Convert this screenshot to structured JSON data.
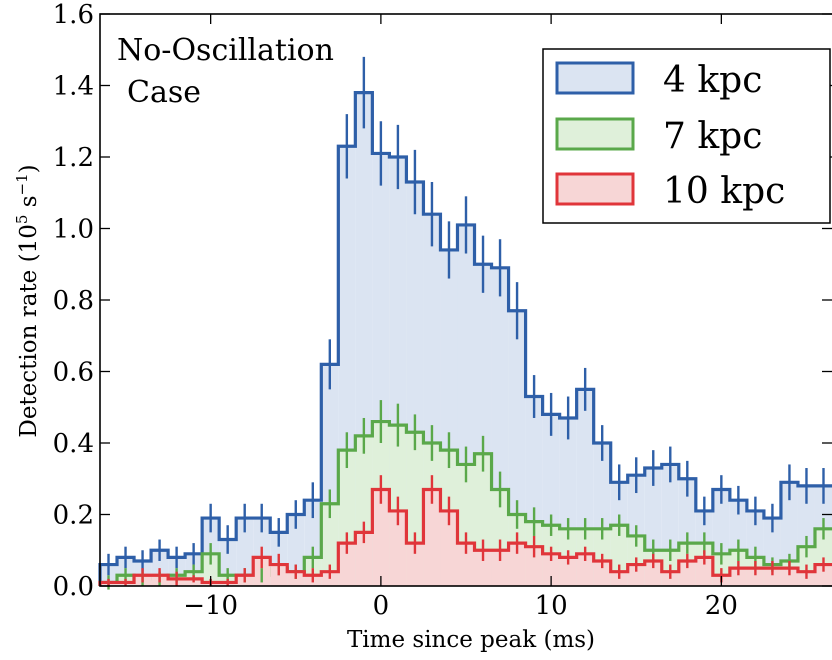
{
  "chart_data": {
    "type": "bar",
    "title": "",
    "xlabel": "Time since peak (ms)",
    "ylabel": "Detection rate (10",
    "ylabel_sup1": "5",
    "ylabel_mid": " s",
    "ylabel_sup2": "−1",
    "ylabel_end": ")",
    "xlim": [
      -16.5,
      26.5
    ],
    "ylim": [
      0.0,
      1.6
    ],
    "bin_width": 1,
    "x_ticks": [
      -10,
      0,
      10,
      20
    ],
    "x_tick_labels": [
      "−10",
      "0",
      "10",
      "20"
    ],
    "y_ticks": [
      0.0,
      0.2,
      0.4,
      0.6,
      0.8,
      1.0,
      1.2,
      1.4,
      1.6
    ],
    "y_tick_labels": [
      "0.0",
      "0.2",
      "0.4",
      "0.6",
      "0.8",
      "1.0",
      "1.2",
      "1.4",
      "1.6"
    ],
    "annotation": [
      "No-Oscillation",
      "Case"
    ],
    "legend_position": "top-right",
    "x": [
      -16,
      -15,
      -14,
      -13,
      -12,
      -11,
      -10,
      -9,
      -8,
      -7,
      -6,
      -5,
      -4,
      -3,
      -2,
      -1,
      0,
      1,
      2,
      3,
      4,
      5,
      6,
      7,
      8,
      9,
      10,
      11,
      12,
      13,
      14,
      15,
      16,
      17,
      18,
      19,
      20,
      21,
      22,
      23,
      24,
      25,
      26
    ],
    "series": [
      {
        "name": "4 kpc",
        "color": "#2e5fa8",
        "fill": "#dbe4f2",
        "values": [
          0.06,
          0.08,
          0.07,
          0.1,
          0.08,
          0.09,
          0.19,
          0.13,
          0.19,
          0.19,
          0.15,
          0.2,
          0.24,
          0.62,
          1.23,
          1.38,
          1.21,
          1.2,
          1.13,
          1.04,
          0.94,
          1.01,
          0.9,
          0.89,
          0.77,
          0.53,
          0.48,
          0.47,
          0.55,
          0.4,
          0.29,
          0.31,
          0.33,
          0.34,
          0.3,
          0.21,
          0.27,
          0.24,
          0.21,
          0.19,
          0.29,
          0.28,
          0.28
        ],
        "errors": [
          0.03,
          0.03,
          0.03,
          0.03,
          0.03,
          0.03,
          0.04,
          0.04,
          0.04,
          0.04,
          0.04,
          0.04,
          0.05,
          0.07,
          0.09,
          0.1,
          0.09,
          0.09,
          0.09,
          0.09,
          0.08,
          0.08,
          0.08,
          0.08,
          0.08,
          0.06,
          0.06,
          0.06,
          0.06,
          0.05,
          0.05,
          0.05,
          0.05,
          0.05,
          0.05,
          0.04,
          0.04,
          0.04,
          0.04,
          0.04,
          0.05,
          0.05,
          0.05
        ]
      },
      {
        "name": "7 kpc",
        "color": "#5aa84a",
        "fill": "#dff0da",
        "values": [
          0.01,
          0.03,
          0.02,
          0.02,
          0.03,
          0.04,
          0.09,
          0.03,
          0.03,
          0.03,
          0.05,
          0.04,
          0.08,
          0.23,
          0.38,
          0.42,
          0.46,
          0.45,
          0.43,
          0.4,
          0.38,
          0.34,
          0.37,
          0.27,
          0.2,
          0.18,
          0.17,
          0.16,
          0.16,
          0.16,
          0.17,
          0.14,
          0.1,
          0.1,
          0.12,
          0.12,
          0.09,
          0.1,
          0.08,
          0.06,
          0.07,
          0.11,
          0.16
        ],
        "errors": [
          0.02,
          0.02,
          0.02,
          0.02,
          0.02,
          0.02,
          0.03,
          0.02,
          0.02,
          0.02,
          0.02,
          0.02,
          0.03,
          0.04,
          0.05,
          0.05,
          0.06,
          0.06,
          0.05,
          0.05,
          0.05,
          0.05,
          0.05,
          0.05,
          0.04,
          0.04,
          0.03,
          0.03,
          0.03,
          0.03,
          0.03,
          0.03,
          0.03,
          0.03,
          0.03,
          0.03,
          0.03,
          0.03,
          0.03,
          0.02,
          0.02,
          0.03,
          0.03
        ]
      },
      {
        "name": "10 kpc",
        "color": "#e0353a",
        "fill": "#f7d6d6",
        "values": [
          0.01,
          0.01,
          0.03,
          0.03,
          0.02,
          0.02,
          0.01,
          0.01,
          0.03,
          0.08,
          0.06,
          0.04,
          0.03,
          0.04,
          0.12,
          0.15,
          0.27,
          0.21,
          0.12,
          0.27,
          0.21,
          0.12,
          0.1,
          0.1,
          0.12,
          0.11,
          0.09,
          0.08,
          0.09,
          0.07,
          0.04,
          0.06,
          0.07,
          0.04,
          0.07,
          0.08,
          0.03,
          0.05,
          0.05,
          0.05,
          0.05,
          0.04,
          0.06
        ],
        "errors": [
          0.01,
          0.01,
          0.02,
          0.02,
          0.02,
          0.01,
          0.01,
          0.01,
          0.02,
          0.03,
          0.03,
          0.02,
          0.02,
          0.02,
          0.03,
          0.03,
          0.04,
          0.04,
          0.03,
          0.04,
          0.04,
          0.03,
          0.03,
          0.03,
          0.03,
          0.03,
          0.02,
          0.02,
          0.02,
          0.02,
          0.02,
          0.02,
          0.02,
          0.02,
          0.02,
          0.02,
          0.02,
          0.02,
          0.02,
          0.02,
          0.02,
          0.02,
          0.02
        ]
      }
    ]
  }
}
